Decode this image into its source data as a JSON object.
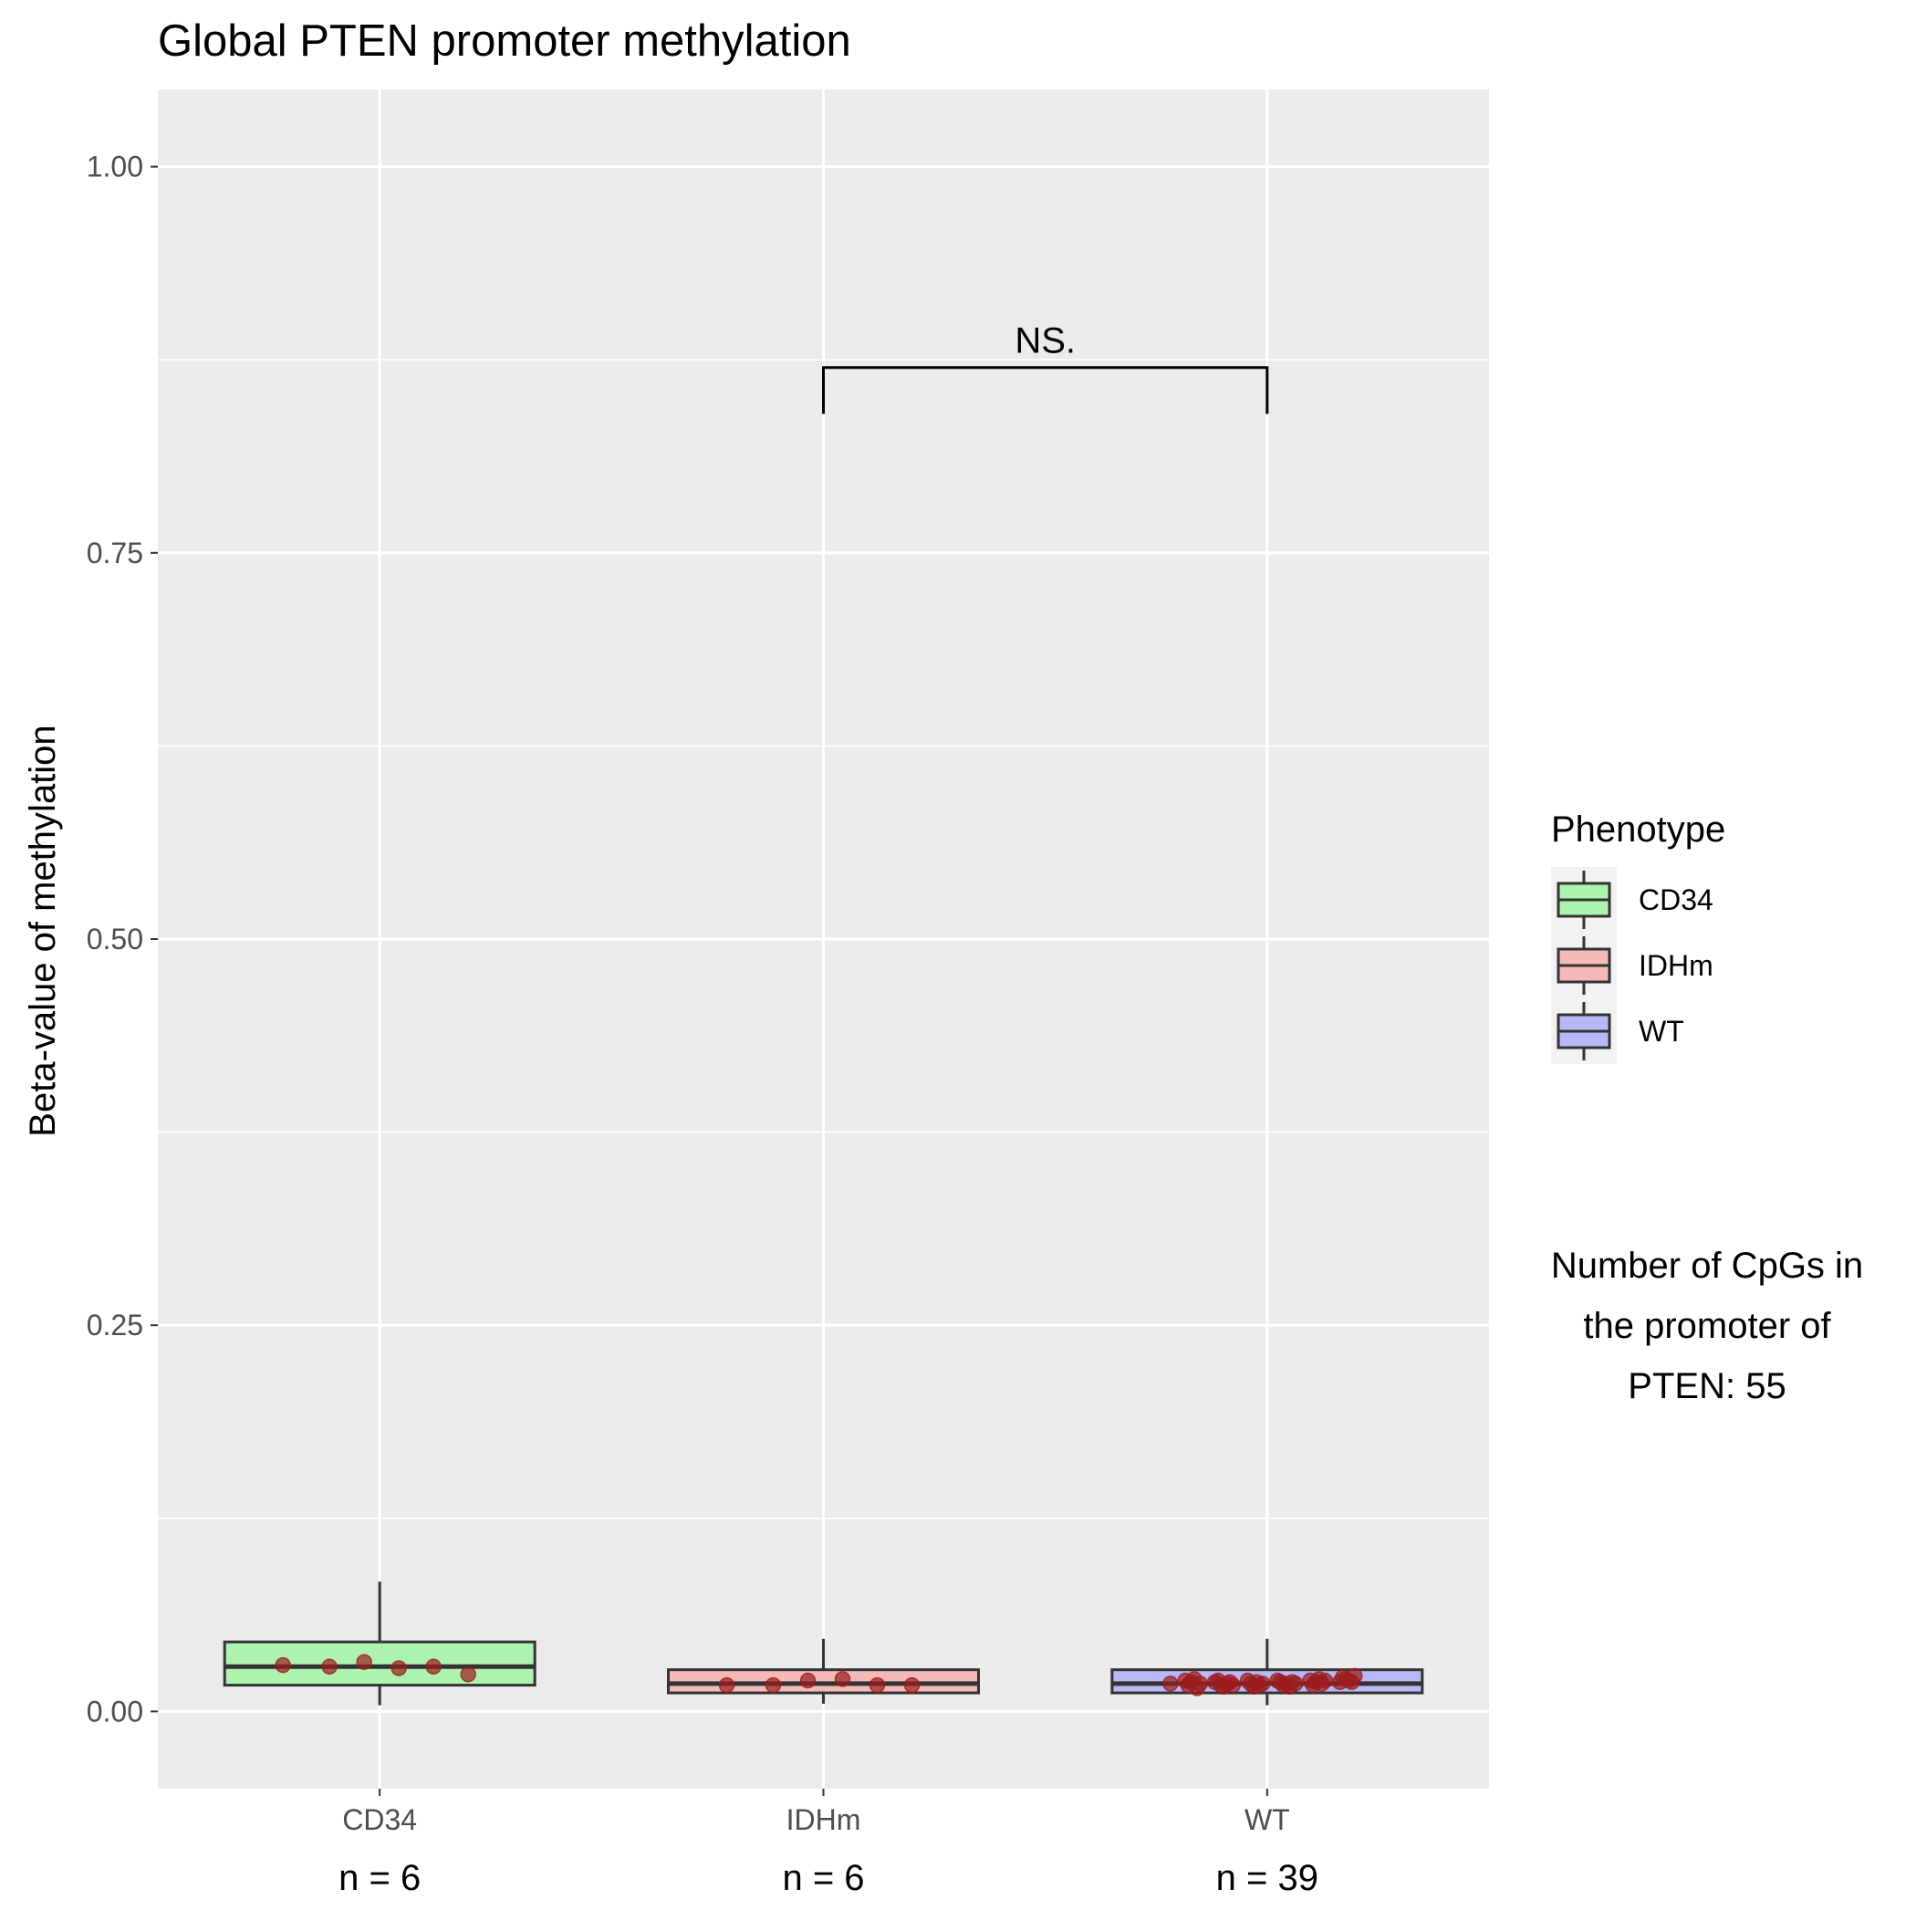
{
  "chart_data": {
    "type": "box",
    "title": "Global PTEN promoter methylation",
    "xlabel": "",
    "ylabel": "Beta-value of methylation",
    "ylim": [
      -0.05,
      1.05
    ],
    "y_ticks": [
      0,
      0.25,
      0.5,
      0.75,
      1.0
    ],
    "y_tick_labels": [
      "0.00",
      "0.25",
      "0.50",
      "0.75",
      "1.00"
    ],
    "categories": [
      "CD34",
      "IDHm",
      "WT"
    ],
    "n_labels": [
      "n = 6",
      "n = 6",
      "n = 39"
    ],
    "grid": true,
    "boxes": [
      {
        "category": "CD34",
        "whisker_low": 0.004,
        "q1": 0.017,
        "median": 0.029,
        "q3": 0.045,
        "whisker_high": 0.084,
        "fill": "#aef2b0",
        "points": [
          0.03,
          0.029,
          0.032,
          0.028,
          0.029,
          0.024
        ]
      },
      {
        "category": "IDHm",
        "whisker_low": 0.005,
        "q1": 0.012,
        "median": 0.018,
        "q3": 0.027,
        "whisker_high": 0.047,
        "fill": "#f4b8b8",
        "points": [
          0.017,
          0.017,
          0.02,
          0.021,
          0.017,
          0.017
        ]
      },
      {
        "category": "WT",
        "whisker_low": 0.004,
        "q1": 0.012,
        "median": 0.018,
        "q3": 0.027,
        "whisker_high": 0.047,
        "fill": "#b8b8f6",
        "points": [
          0.018,
          0.02,
          0.017,
          0.019,
          0.021,
          0.015,
          0.018,
          0.019,
          0.02,
          0.017,
          0.016,
          0.018,
          0.019,
          0.017,
          0.02,
          0.018,
          0.016,
          0.019,
          0.017,
          0.018,
          0.02,
          0.019,
          0.017,
          0.018,
          0.016,
          0.019,
          0.018,
          0.02,
          0.017,
          0.019,
          0.021,
          0.018,
          0.02,
          0.019,
          0.022,
          0.021,
          0.02,
          0.019,
          0.023
        ]
      }
    ],
    "point_color": "#9b1c1c",
    "significance": {
      "from": "IDHm",
      "to": "WT",
      "y": 0.87,
      "tick_bottom": 0.84,
      "label": "NS."
    },
    "legend": {
      "title": "Phenotype",
      "position": "right",
      "items": [
        {
          "label": "CD34",
          "fill": "#aef2b0"
        },
        {
          "label": "IDHm",
          "fill": "#f4b8b8"
        },
        {
          "label": "WT",
          "fill": "#b8b8f6"
        }
      ]
    },
    "annotation_lines": [
      "Number of CpGs in",
      "the promoter of",
      "PTEN: 55"
    ]
  },
  "colors": {
    "panel_background": "#ebebeb",
    "gridline": "#ffffff",
    "box_outline": "#333333"
  }
}
